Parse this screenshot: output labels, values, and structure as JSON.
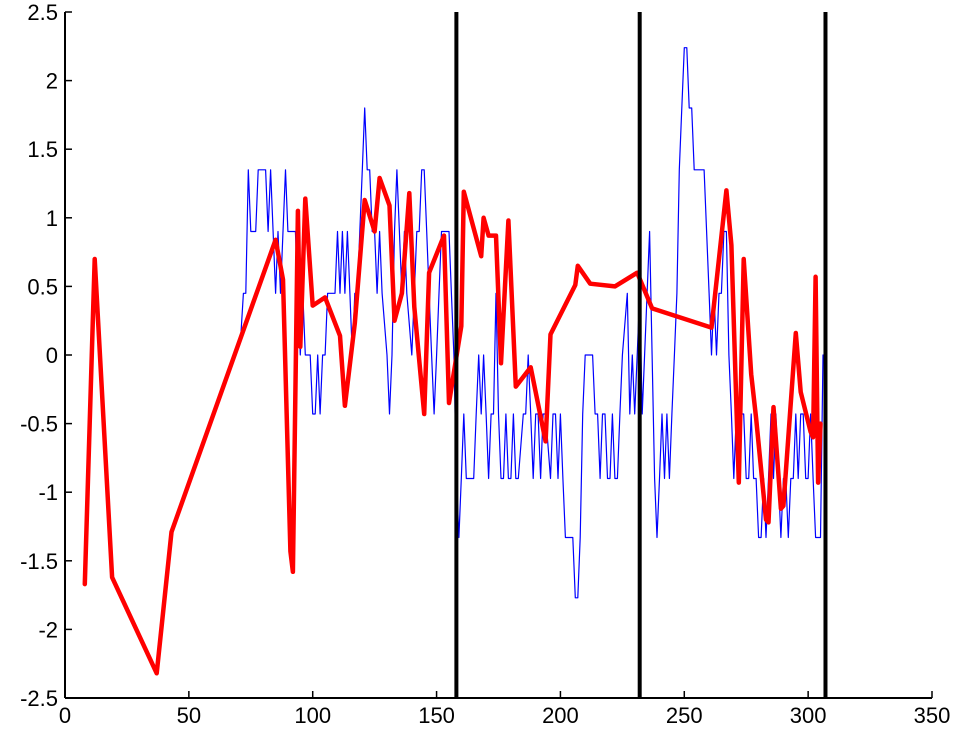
{
  "chart_data": {
    "type": "line",
    "title": "",
    "xlabel": "",
    "ylabel": "",
    "xlim": [
      0,
      350
    ],
    "ylim": [
      -2.5,
      2.5
    ],
    "grid": false,
    "legend": "none",
    "x_ticks": [
      "0",
      "50",
      "100",
      "150",
      "200",
      "250",
      "300",
      "350"
    ],
    "y_ticks": [
      "2.5",
      "2",
      "1.5",
      "1",
      "0.5",
      "0",
      "-0.5",
      "-1",
      "-1.5",
      "-2",
      "-2.5"
    ],
    "vertical_lines": [
      158,
      232,
      307
    ],
    "series": [
      {
        "color": "#0000ff",
        "style": "thin",
        "points": [
          [
            71,
            0.15
          ],
          [
            72,
            0.45
          ],
          [
            73,
            0.45
          ],
          [
            74,
            1.35
          ],
          [
            75,
            0.9
          ],
          [
            77,
            0.9
          ],
          [
            78,
            1.35
          ],
          [
            80,
            1.35
          ],
          [
            81,
            1.35
          ],
          [
            82,
            0.9
          ],
          [
            83,
            1.35
          ],
          [
            84,
            0.9
          ],
          [
            85,
            0.45
          ],
          [
            86,
            0.9
          ],
          [
            87,
            0.45
          ],
          [
            88,
            0.9
          ],
          [
            89,
            1.35
          ],
          [
            90,
            0.9
          ],
          [
            93,
            0.9
          ],
          [
            94,
            0.45
          ],
          [
            95,
            0.0
          ],
          [
            96,
            0.45
          ],
          [
            97,
            0.0
          ],
          [
            99,
            0.0
          ],
          [
            100,
            -0.43
          ],
          [
            101,
            -0.43
          ],
          [
            102,
            0.0
          ],
          [
            103,
            -0.43
          ],
          [
            104,
            0.0
          ],
          [
            105,
            0.0
          ],
          [
            106,
            0.45
          ],
          [
            108,
            0.45
          ],
          [
            109,
            0.45
          ],
          [
            110,
            0.9
          ],
          [
            111,
            0.45
          ],
          [
            112,
            0.9
          ],
          [
            113,
            0.45
          ],
          [
            114,
            0.9
          ],
          [
            115,
            0.45
          ],
          [
            116,
            0.0
          ],
          [
            117,
            0.45
          ],
          [
            118,
            0.45
          ],
          [
            119,
            0.9
          ],
          [
            120,
            1.35
          ],
          [
            121,
            1.8
          ],
          [
            122,
            1.35
          ],
          [
            123,
            1.35
          ],
          [
            124,
            0.9
          ],
          [
            125,
            0.9
          ],
          [
            126,
            0.45
          ],
          [
            127,
            0.9
          ],
          [
            128,
            0.45
          ],
          [
            130,
            0.0
          ],
          [
            131,
            -0.43
          ],
          [
            132,
            0.0
          ],
          [
            133,
            0.9
          ],
          [
            134,
            1.35
          ],
          [
            135,
            0.9
          ],
          [
            136,
            0.45
          ],
          [
            137,
            0.9
          ],
          [
            138,
            0.45
          ],
          [
            140,
            0.0
          ],
          [
            141,
            0.45
          ],
          [
            142,
            0.9
          ],
          [
            143,
            0.9
          ],
          [
            144,
            1.35
          ],
          [
            145,
            1.35
          ],
          [
            146,
            0.9
          ],
          [
            147,
            0.45
          ],
          [
            148,
            0.0
          ],
          [
            149,
            -0.43
          ],
          [
            150,
            0.0
          ],
          [
            151,
            0.45
          ],
          [
            152,
            0.9
          ],
          [
            153,
            0.9
          ],
          [
            155,
            0.9
          ],
          [
            156,
            0.45
          ],
          [
            157,
            0.0
          ],
          [
            158,
            -0.9
          ],
          [
            159,
            -1.33
          ],
          [
            160,
            -0.9
          ],
          [
            161,
            -0.43
          ],
          [
            162,
            -0.9
          ],
          [
            165,
            -0.9
          ],
          [
            166,
            -0.43
          ],
          [
            167,
            0.0
          ],
          [
            168,
            -0.43
          ],
          [
            169,
            0.0
          ],
          [
            170,
            -0.43
          ],
          [
            171,
            -0.9
          ],
          [
            172,
            -0.43
          ],
          [
            173,
            -0.43
          ],
          [
            174,
            0.45
          ],
          [
            175,
            -0.43
          ],
          [
            176,
            -0.9
          ],
          [
            177,
            -0.9
          ],
          [
            178,
            -0.43
          ],
          [
            179,
            -0.9
          ],
          [
            180,
            -0.9
          ],
          [
            181,
            -0.43
          ],
          [
            182,
            -0.9
          ],
          [
            183,
            -0.9
          ],
          [
            185,
            -0.43
          ],
          [
            186,
            -0.43
          ],
          [
            187,
            0.0
          ],
          [
            188,
            -0.43
          ],
          [
            189,
            -0.9
          ],
          [
            190,
            -0.43
          ],
          [
            191,
            -0.43
          ],
          [
            192,
            -0.9
          ],
          [
            193,
            -0.43
          ],
          [
            194,
            -0.43
          ],
          [
            196,
            -0.9
          ],
          [
            197,
            -0.43
          ],
          [
            198,
            -0.43
          ],
          [
            199,
            -0.9
          ],
          [
            200,
            -0.43
          ],
          [
            201,
            -0.9
          ],
          [
            202,
            -1.33
          ],
          [
            203,
            -1.33
          ],
          [
            205,
            -1.33
          ],
          [
            206,
            -1.77
          ],
          [
            207,
            -1.77
          ],
          [
            208,
            -1.33
          ],
          [
            209,
            -0.43
          ],
          [
            210,
            0.0
          ],
          [
            213,
            0.0
          ],
          [
            214,
            -0.43
          ],
          [
            215,
            -0.43
          ],
          [
            216,
            -0.9
          ],
          [
            217,
            -0.43
          ],
          [
            218,
            -0.43
          ],
          [
            219,
            -0.9
          ],
          [
            220,
            -0.9
          ],
          [
            221,
            -0.43
          ],
          [
            222,
            -0.9
          ],
          [
            223,
            -0.9
          ],
          [
            224,
            -0.43
          ],
          [
            225,
            0.0
          ],
          [
            227,
            0.45
          ],
          [
            228,
            -0.43
          ],
          [
            229,
            0.0
          ],
          [
            230,
            -0.43
          ],
          [
            231,
            0.0
          ],
          [
            232,
            0.45
          ],
          [
            233,
            -0.43
          ],
          [
            235,
            0.45
          ],
          [
            236,
            0.9
          ],
          [
            237,
            0.0
          ],
          [
            238,
            -0.9
          ],
          [
            239,
            -1.33
          ],
          [
            240,
            -0.9
          ],
          [
            241,
            -0.43
          ],
          [
            242,
            -0.9
          ],
          [
            243,
            -0.43
          ],
          [
            244,
            -0.9
          ],
          [
            245,
            -0.43
          ],
          [
            246,
            0.0
          ],
          [
            247,
            0.45
          ],
          [
            248,
            1.35
          ],
          [
            249,
            1.8
          ],
          [
            250,
            2.24
          ],
          [
            251,
            2.24
          ],
          [
            252,
            1.8
          ],
          [
            253,
            1.8
          ],
          [
            254,
            1.35
          ],
          [
            255,
            1.35
          ],
          [
            258,
            1.35
          ],
          [
            259,
            0.9
          ],
          [
            260,
            0.45
          ],
          [
            261,
            0.0
          ],
          [
            262,
            0.45
          ],
          [
            263,
            0.0
          ],
          [
            264,
            0.45
          ],
          [
            265,
            0.45
          ],
          [
            266,
            0.9
          ],
          [
            267,
            0.9
          ],
          [
            268,
            0.0
          ],
          [
            269,
            -0.43
          ],
          [
            270,
            -0.9
          ],
          [
            271,
            -0.43
          ],
          [
            272,
            -0.9
          ],
          [
            273,
            -0.43
          ],
          [
            274,
            -0.43
          ],
          [
            275,
            -0.9
          ],
          [
            276,
            -0.9
          ],
          [
            277,
            -0.43
          ],
          [
            278,
            -0.9
          ],
          [
            279,
            -0.9
          ],
          [
            280,
            -1.33
          ],
          [
            281,
            -1.33
          ],
          [
            282,
            -0.9
          ],
          [
            283,
            -1.33
          ],
          [
            284,
            -0.9
          ],
          [
            285,
            -0.43
          ],
          [
            286,
            -0.9
          ],
          [
            287,
            -0.43
          ],
          [
            288,
            -0.9
          ],
          [
            289,
            -1.33
          ],
          [
            290,
            -0.9
          ],
          [
            291,
            -0.9
          ],
          [
            292,
            -1.33
          ],
          [
            293,
            -0.9
          ],
          [
            294,
            -0.9
          ],
          [
            295,
            -0.43
          ],
          [
            296,
            -0.9
          ],
          [
            297,
            -0.43
          ],
          [
            298,
            -0.43
          ],
          [
            299,
            -0.9
          ],
          [
            300,
            -0.9
          ],
          [
            301,
            -0.43
          ],
          [
            302,
            -0.9
          ],
          [
            303,
            -1.33
          ],
          [
            304,
            -1.33
          ],
          [
            305,
            -1.33
          ],
          [
            306,
            0.0
          ]
        ]
      },
      {
        "color": "#ff0000",
        "style": "thick",
        "points": [
          [
            8,
            -1.67
          ],
          [
            12,
            0.7
          ],
          [
            19,
            -1.62
          ],
          [
            37,
            -2.32
          ],
          [
            43,
            -1.29
          ],
          [
            85,
            0.84
          ],
          [
            88,
            0.55
          ],
          [
            91,
            -1.43
          ],
          [
            92,
            -1.58
          ],
          [
            94,
            1.05
          ],
          [
            95,
            0.06
          ],
          [
            97,
            1.14
          ],
          [
            100,
            0.36
          ],
          [
            105,
            0.42
          ],
          [
            111,
            0.14
          ],
          [
            113,
            -0.37
          ],
          [
            117,
            0.23
          ],
          [
            121,
            1.13
          ],
          [
            125,
            0.9
          ],
          [
            127,
            1.29
          ],
          [
            131,
            1.09
          ],
          [
            133,
            0.25
          ],
          [
            136,
            0.45
          ],
          [
            139,
            1.18
          ],
          [
            141,
            0.35
          ],
          [
            145,
            -0.43
          ],
          [
            147,
            0.6
          ],
          [
            153,
            0.87
          ],
          [
            155,
            -0.35
          ],
          [
            160,
            0.21
          ],
          [
            161,
            1.19
          ],
          [
            168,
            0.72
          ],
          [
            169,
            1.0
          ],
          [
            171,
            0.87
          ],
          [
            174,
            0.87
          ],
          [
            176,
            -0.06
          ],
          [
            179,
            0.98
          ],
          [
            182,
            -0.23
          ],
          [
            188,
            -0.09
          ],
          [
            194,
            -0.63
          ],
          [
            196,
            0.15
          ],
          [
            206,
            0.51
          ],
          [
            207,
            0.65
          ],
          [
            212,
            0.52
          ],
          [
            222,
            0.5
          ],
          [
            231,
            0.6
          ],
          [
            237,
            0.34
          ],
          [
            261,
            0.2
          ],
          [
            267,
            1.2
          ],
          [
            269,
            0.8
          ],
          [
            272,
            -0.93
          ],
          [
            274,
            0.7
          ],
          [
            277,
            -0.14
          ],
          [
            279,
            -0.46
          ],
          [
            283,
            -1.2
          ],
          [
            284,
            -1.22
          ],
          [
            286,
            -0.38
          ],
          [
            289,
            -1.12
          ],
          [
            290,
            -1.1
          ],
          [
            295,
            0.16
          ],
          [
            297,
            -0.27
          ],
          [
            301,
            -0.56
          ],
          [
            302,
            -0.6
          ],
          [
            303,
            0.57
          ],
          [
            304,
            -0.93
          ],
          [
            305,
            -0.5
          ]
        ]
      }
    ]
  }
}
